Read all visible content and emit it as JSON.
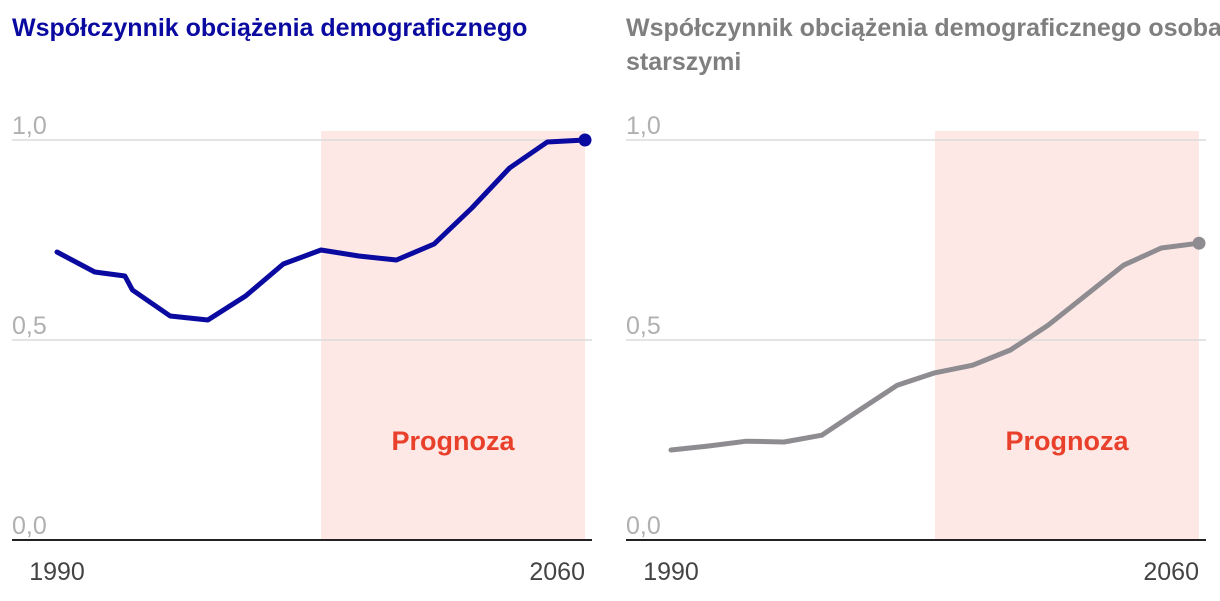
{
  "chart_data": [
    {
      "type": "line",
      "title": "Współczynnik obciążenia demograficznego",
      "title_color": "#0a0aa0",
      "x": [
        1990,
        1995,
        1999,
        2000,
        2005,
        2010,
        2015,
        2020,
        2025,
        2030,
        2035,
        2040,
        2045,
        2050,
        2055,
        2060
      ],
      "series": [
        {
          "name": "Współczynnik obciążenia demograficznego",
          "color": "#0a0aa0",
          "values": [
            0.72,
            0.67,
            0.66,
            0.625,
            0.56,
            0.55,
            0.61,
            0.69,
            0.725,
            0.71,
            0.7,
            0.74,
            0.83,
            0.93,
            0.995,
            1.0
          ]
        }
      ],
      "xlim": [
        1990,
        2060
      ],
      "xticks": [
        1990,
        2060
      ],
      "ylim": [
        0,
        1
      ],
      "yticks": [
        {
          "value": 0,
          "label": "0,0"
        },
        {
          "value": 0.5,
          "label": "0,5"
        },
        {
          "value": 1,
          "label": "1,0"
        }
      ],
      "grid": true,
      "forecast_start": 2025,
      "forecast_label": "Prognoza"
    },
    {
      "type": "line",
      "title": "Współczynnik obciążenia demograficznego osobami starszymi",
      "title_color": "#7f7f7f",
      "x": [
        1990,
        1995,
        2000,
        2005,
        2010,
        2015,
        2020,
        2025,
        2030,
        2035,
        2040,
        2045,
        2050,
        2055,
        2060
      ],
      "series": [
        {
          "name": "Współczynnik obciążenia demograficznego osobami starszymi",
          "color": "#8e8c90",
          "values": [
            0.225,
            0.235,
            0.247,
            0.245,
            0.262,
            0.325,
            0.387,
            0.418,
            0.437,
            0.475,
            0.537,
            0.612,
            0.687,
            0.73,
            0.742
          ]
        }
      ],
      "xlim": [
        1990,
        2060
      ],
      "xticks": [
        1990,
        2060
      ],
      "ylim": [
        0,
        1
      ],
      "yticks": [
        {
          "value": 0,
          "label": "0,0"
        },
        {
          "value": 0.5,
          "label": "0,5"
        },
        {
          "value": 1,
          "label": "1,0"
        }
      ],
      "grid": true,
      "forecast_start": 2025,
      "forecast_label": "Prognoza"
    }
  ]
}
